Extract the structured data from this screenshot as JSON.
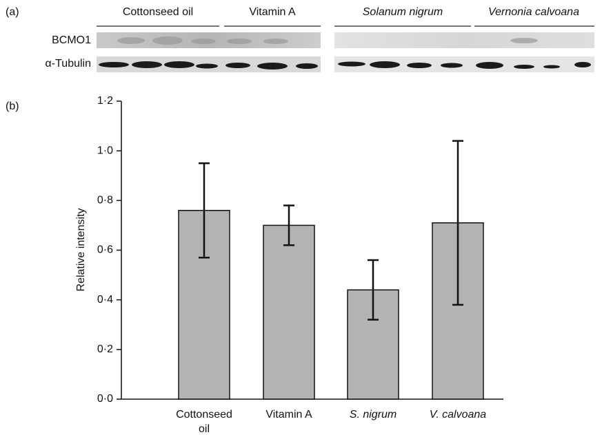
{
  "panel_a": {
    "label": "(a)",
    "groups": [
      "Cottonseed oil",
      "Vitamin A",
      "Solanum nigrum",
      "Vernonia calvoana"
    ],
    "rows": [
      "BCMO1",
      "α-Tubulin"
    ]
  },
  "chart_data": {
    "type": "bar",
    "panel_label": "(b)",
    "y_label": "Relative intensity",
    "categories": [
      "Cottonseed oil",
      "Vitamin A",
      "S. nigrum",
      "V. calvoana"
    ],
    "values": [
      0.76,
      0.7,
      0.44,
      0.71
    ],
    "errors": [
      0.19,
      0.08,
      0.12,
      0.33
    ],
    "color": "#b3b3b3",
    "ylim": [
      0,
      1.2
    ],
    "yticks": [
      {
        "value": 0,
        "label": "0·0"
      },
      {
        "value": 0.2,
        "label": "0·2"
      },
      {
        "value": 0.4,
        "label": "0·4"
      },
      {
        "value": 0.6,
        "label": "0·6"
      },
      {
        "value": 0.8,
        "label": "0·8"
      },
      {
        "value": 1.0,
        "label": "1·0"
      },
      {
        "value": 1.2,
        "label": "1·2"
      }
    ]
  }
}
